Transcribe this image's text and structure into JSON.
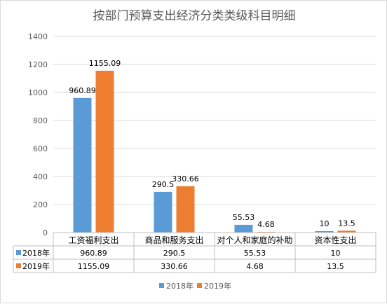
{
  "chart_data": {
    "type": "bar",
    "title": "按部门预算支出经济分类类级科目明细",
    "categories": [
      "工资福利支出",
      "商品和服务支出",
      "对个人和家庭的补助",
      "资本性支出"
    ],
    "series": [
      {
        "name": "2018年",
        "values": [
          960.89,
          290.5,
          55.53,
          10
        ],
        "labels": [
          "960.89",
          "290.5",
          "55.53",
          "10"
        ],
        "color": "#5b9bd5"
      },
      {
        "name": "2019年",
        "values": [
          1155.09,
          330.66,
          4.68,
          13.5
        ],
        "labels": [
          "1155.09",
          "330.66",
          "4.68",
          "13.5"
        ],
        "color": "#ed7d31"
      }
    ],
    "ylim": [
      0,
      1400
    ],
    "yticks": [
      "0",
      "200",
      "400",
      "600",
      "800",
      "1000",
      "1200",
      "1400"
    ],
    "grid": true,
    "legend": "bottom",
    "data_table": true
  }
}
